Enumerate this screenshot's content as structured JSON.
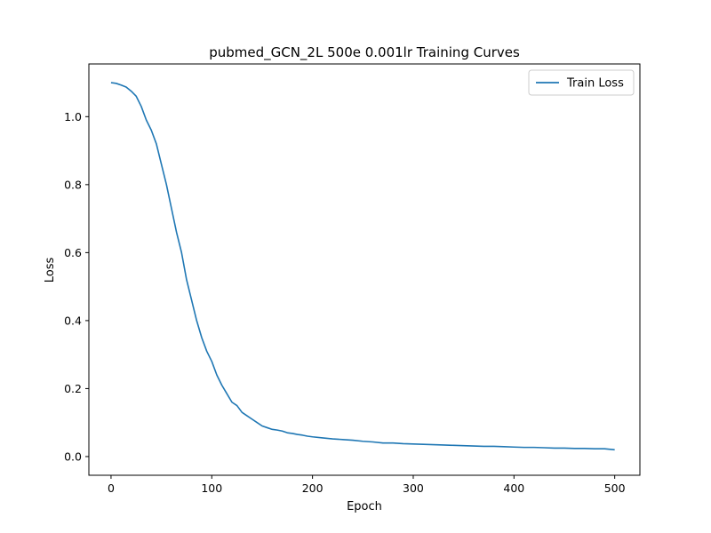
{
  "chart_data": {
    "type": "line",
    "title": "pubmed_GCN_2L  500e  0.001lr  Training Curves",
    "xlabel": "Epoch",
    "ylabel": "Loss",
    "xlim": [
      -22,
      525
    ],
    "ylim": [
      -0.055,
      1.155
    ],
    "xticks": [
      0,
      100,
      200,
      300,
      400,
      500
    ],
    "yticks": [
      0.0,
      0.2,
      0.4,
      0.6,
      0.8,
      1.0
    ],
    "ytick_labels": [
      "0.0",
      "0.2",
      "0.4",
      "0.6",
      "0.8",
      "1.0"
    ],
    "legend": {
      "placement": "upper-right"
    },
    "series": [
      {
        "name": "Train Loss",
        "color": "#1f77b4",
        "x": [
          0,
          5,
          10,
          15,
          20,
          25,
          30,
          35,
          40,
          45,
          50,
          55,
          60,
          65,
          70,
          75,
          80,
          85,
          90,
          95,
          100,
          105,
          110,
          115,
          120,
          125,
          130,
          135,
          140,
          145,
          150,
          155,
          160,
          165,
          170,
          175,
          180,
          185,
          190,
          195,
          200,
          210,
          220,
          230,
          240,
          250,
          260,
          270,
          280,
          290,
          300,
          310,
          320,
          330,
          340,
          350,
          360,
          370,
          380,
          390,
          400,
          410,
          420,
          430,
          440,
          450,
          460,
          470,
          480,
          490,
          500
        ],
        "y": [
          1.1,
          1.098,
          1.093,
          1.087,
          1.075,
          1.06,
          1.03,
          0.99,
          0.96,
          0.92,
          0.86,
          0.8,
          0.73,
          0.66,
          0.6,
          0.52,
          0.46,
          0.4,
          0.35,
          0.31,
          0.28,
          0.24,
          0.21,
          0.185,
          0.16,
          0.15,
          0.13,
          0.12,
          0.11,
          0.1,
          0.09,
          0.085,
          0.08,
          0.078,
          0.075,
          0.07,
          0.068,
          0.065,
          0.063,
          0.06,
          0.058,
          0.055,
          0.052,
          0.05,
          0.048,
          0.045,
          0.043,
          0.04,
          0.04,
          0.038,
          0.037,
          0.036,
          0.035,
          0.034,
          0.033,
          0.032,
          0.031,
          0.03,
          0.03,
          0.029,
          0.028,
          0.027,
          0.027,
          0.026,
          0.025,
          0.025,
          0.024,
          0.024,
          0.023,
          0.023,
          0.02
        ]
      }
    ]
  }
}
